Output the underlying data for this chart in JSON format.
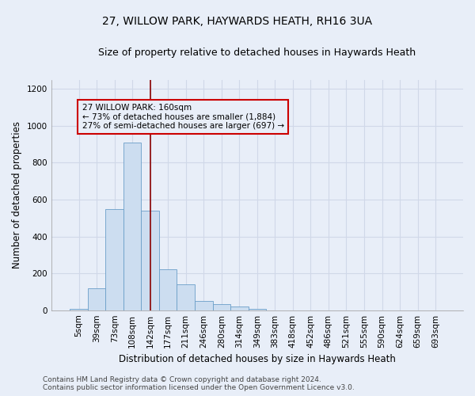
{
  "title_line1": "27, WILLOW PARK, HAYWARDS HEATH, RH16 3UA",
  "title_line2": "Size of property relative to detached houses in Haywards Heath",
  "xlabel": "Distribution of detached houses by size in Haywards Heath",
  "ylabel": "Number of detached properties",
  "bar_labels": [
    "5sqm",
    "39sqm",
    "73sqm",
    "108sqm",
    "142sqm",
    "177sqm",
    "211sqm",
    "246sqm",
    "280sqm",
    "314sqm",
    "349sqm",
    "383sqm",
    "418sqm",
    "452sqm",
    "486sqm",
    "521sqm",
    "555sqm",
    "590sqm",
    "624sqm",
    "659sqm",
    "693sqm"
  ],
  "bar_values": [
    8,
    120,
    550,
    910,
    540,
    220,
    140,
    52,
    32,
    18,
    8,
    0,
    0,
    0,
    0,
    0,
    0,
    0,
    0,
    0,
    0
  ],
  "bar_color": "#ccddf0",
  "bar_edge_color": "#6a9ec8",
  "ylim": [
    0,
    1250
  ],
  "yticks": [
    0,
    200,
    400,
    600,
    800,
    1000,
    1200
  ],
  "property_line_x": 4.5,
  "property_line_color": "#8b0000",
  "annotation_text_line1": "27 WILLOW PARK: 160sqm",
  "annotation_text_line2": "← 73% of detached houses are smaller (1,884)",
  "annotation_text_line3": "27% of semi-detached houses are larger (697) →",
  "footer_line1": "Contains HM Land Registry data © Crown copyright and database right 2024.",
  "footer_line2": "Contains public sector information licensed under the Open Government Licence v3.0.",
  "background_color": "#e8eef8",
  "grid_color": "#d0d8e8",
  "title1_fontsize": 10,
  "title2_fontsize": 9,
  "axis_fontsize": 8.5,
  "tick_fontsize": 7.5,
  "footer_fontsize": 6.5,
  "annot_fontsize": 7.5
}
